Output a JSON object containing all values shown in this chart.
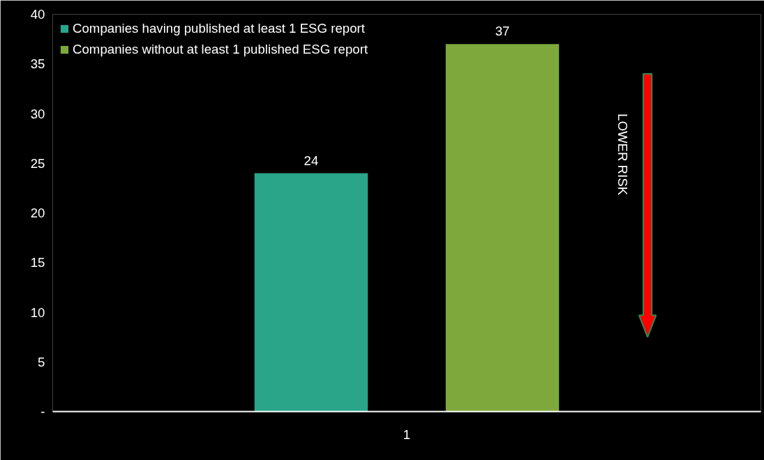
{
  "chart_data": {
    "type": "bar",
    "categories": [
      "1"
    ],
    "series": [
      {
        "name": "Companies having published at least 1 ESG report",
        "color": "#2aa58a",
        "values": [
          24
        ]
      },
      {
        "name": "Companies without at least 1 published ESG report",
        "color": "#7ea83c",
        "values": [
          37
        ]
      }
    ],
    "ylim": [
      0,
      40
    ],
    "yticks": [
      {
        "value": 0,
        "label": "-"
      },
      5,
      10,
      15,
      20,
      25,
      30,
      35,
      40
    ],
    "data_labels": true,
    "grid": false,
    "legend": "top left",
    "annotations": [
      "LOWER RISK"
    ]
  }
}
